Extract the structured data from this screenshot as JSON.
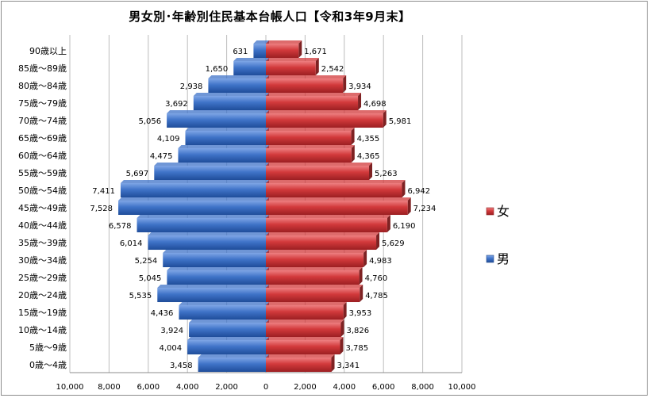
{
  "chart_data": {
    "type": "bar",
    "orientation": "horizontal",
    "title": "男女別･年齢別住民基本台帳人口【令和3年9月末】",
    "categories": [
      "0歳～4歳",
      "5歳～9歳",
      "10歳～14歳",
      "15歳～19歳",
      "20歳～24歳",
      "25歳～29歳",
      "30歳～34歳",
      "35歳～39歳",
      "40歳～44歳",
      "45歳～49歳",
      "50歳～54歳",
      "55歳～59歳",
      "60歳～64歳",
      "65歳～69歳",
      "70歳～74歳",
      "75歳～79歳",
      "80歳～84歳",
      "85歳～89歳",
      "90歳以上"
    ],
    "series": [
      {
        "name": "男",
        "color": "#3f73c8",
        "values": [
          3458,
          4004,
          3924,
          4436,
          5535,
          5045,
          5254,
          6014,
          6578,
          7528,
          7411,
          5697,
          4475,
          4109,
          5056,
          3692,
          2938,
          1650,
          631
        ]
      },
      {
        "name": "女",
        "color": "#d2393b",
        "values": [
          3341,
          3785,
          3826,
          3953,
          4785,
          4760,
          4983,
          5629,
          6190,
          7234,
          6942,
          5263,
          4365,
          4355,
          5981,
          4698,
          3934,
          2542,
          1671
        ]
      }
    ],
    "value_labels_male": [
      "3,458",
      "4,004",
      "3,924",
      "4,436",
      "5,535",
      "5,045",
      "5,254",
      "6,014",
      "6,578",
      "7,528",
      "7,411",
      "5,697",
      "4,475",
      "4,109",
      "5,056",
      "3,692",
      "2,938",
      "1,650",
      "631"
    ],
    "value_labels_female": [
      "3,341",
      "3,785",
      "3,826",
      "3,953",
      "4,785",
      "4,760",
      "4,983",
      "5,629",
      "6,190",
      "7,234",
      "6,942",
      "5,263",
      "4,365",
      "4,355",
      "5,981",
      "4,698",
      "3,934",
      "2,542",
      "1,671"
    ],
    "xlim": [
      -10000,
      10000
    ],
    "xticks": [
      -10000,
      -8000,
      -6000,
      -4000,
      -2000,
      0,
      2000,
      4000,
      6000,
      8000,
      10000
    ],
    "xtick_labels": [
      "10,000",
      "8,000",
      "6,000",
      "4,000",
      "2,000",
      "0",
      "2,000",
      "4,000",
      "6,000",
      "8,000",
      "10,000"
    ],
    "grid": true,
    "legend": {
      "position": "right",
      "entries": [
        "女",
        "男"
      ]
    }
  }
}
